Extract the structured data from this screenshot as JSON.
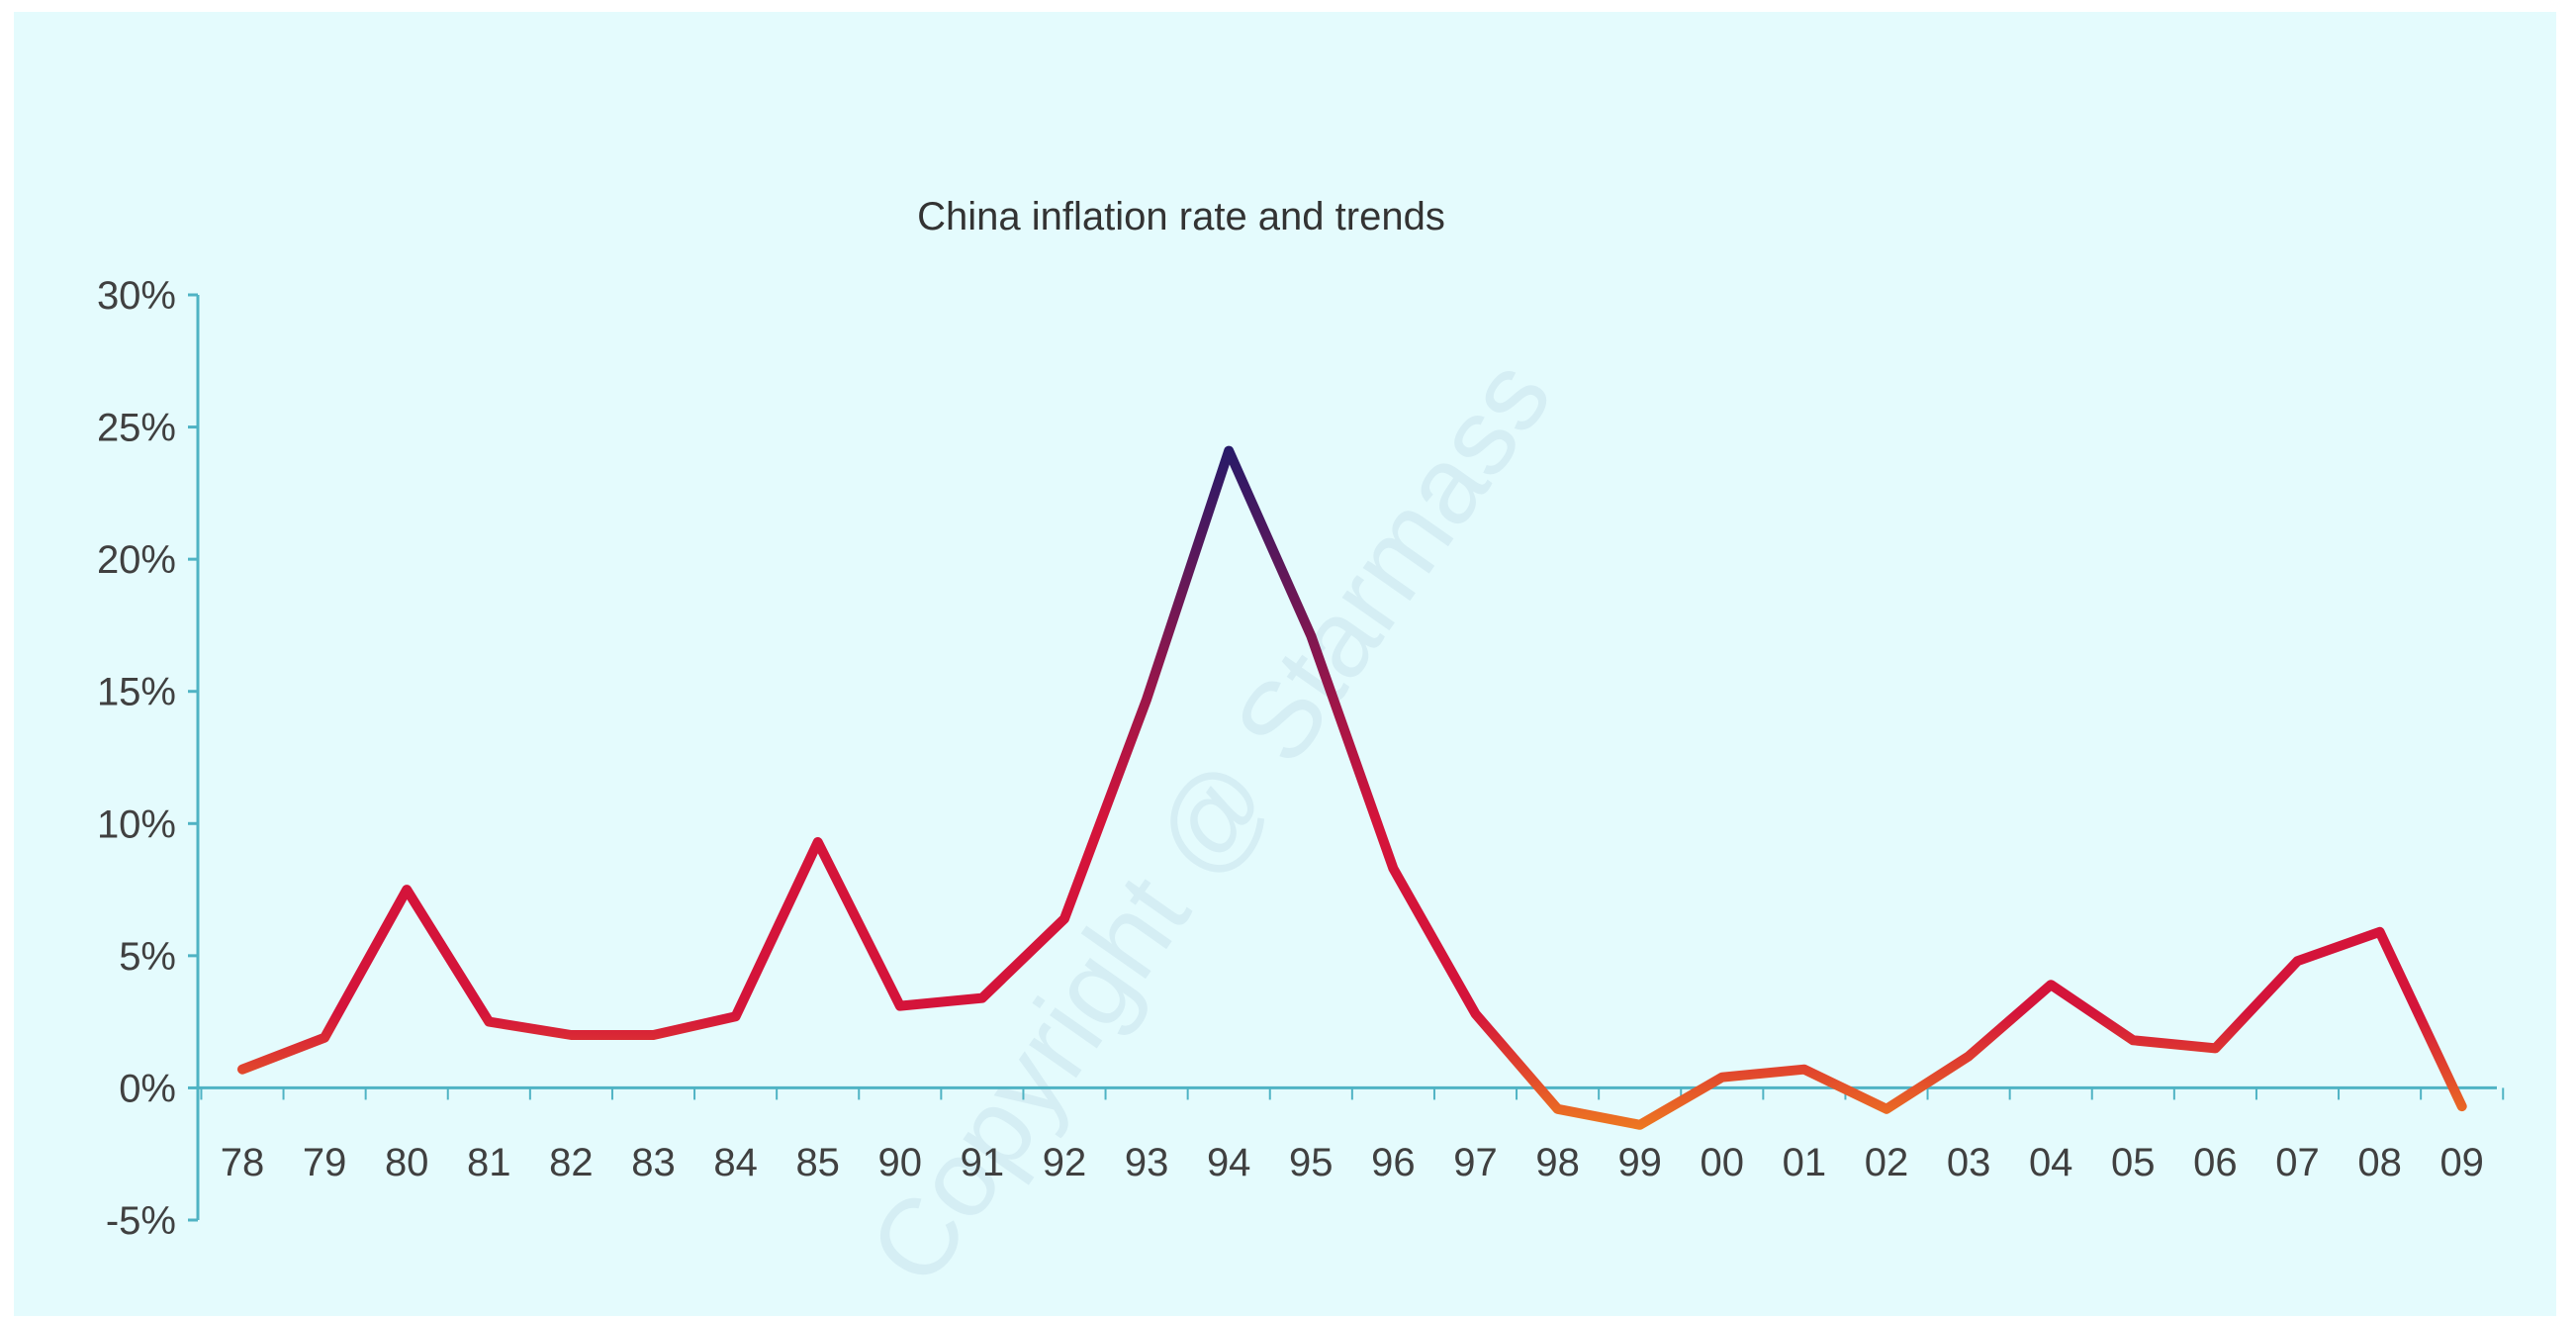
{
  "chart_data": {
    "type": "line",
    "title": "China inflation rate and trends",
    "xlabel": "",
    "ylabel": "",
    "categories": [
      "78",
      "79",
      "80",
      "81",
      "82",
      "83",
      "84",
      "85",
      "90",
      "91",
      "92",
      "93",
      "94",
      "95",
      "96",
      "97",
      "98",
      "99",
      "00",
      "01",
      "02",
      "03",
      "04",
      "05",
      "06",
      "07",
      "08",
      "09"
    ],
    "series": [
      {
        "values": [
          0.7,
          1.9,
          7.5,
          2.5,
          2.0,
          2.0,
          2.7,
          9.3,
          3.1,
          3.4,
          6.4,
          14.7,
          24.1,
          17.1,
          8.3,
          2.8,
          -0.8,
          -1.4,
          0.4,
          0.7,
          -0.8,
          1.2,
          3.9,
          1.8,
          1.5,
          4.8,
          5.9,
          -0.7
        ]
      }
    ],
    "yticks": [
      "30%",
      "25%",
      "20%",
      "15%",
      "10%",
      "5%",
      "0%",
      "-5%"
    ],
    "ytick_values": [
      30,
      25,
      20,
      15,
      10,
      5,
      0,
      -5
    ],
    "ylim": [
      -5,
      30
    ],
    "grid": false,
    "legend": "none",
    "colors": {
      "background": "#e4fbfd",
      "axis": "#4fb3c4",
      "line_low": "#f0821e",
      "line_mid": "#d4143a",
      "line_high": "#1d1a6b"
    }
  },
  "watermark": "Copyright @ Starmass"
}
